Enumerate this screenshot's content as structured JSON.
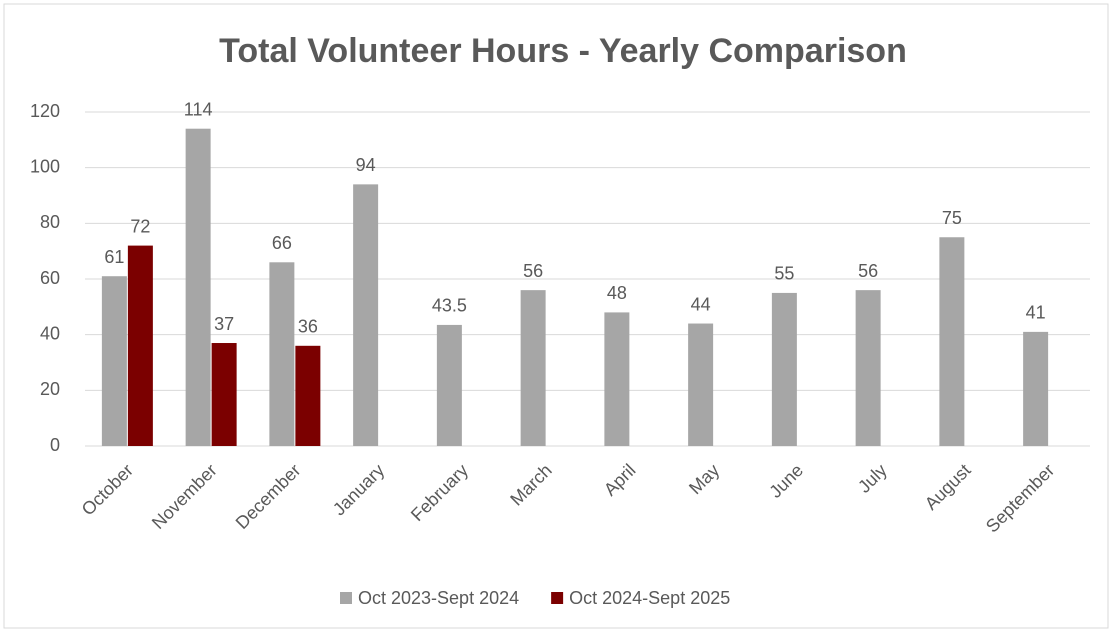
{
  "chart_data": {
    "type": "bar",
    "title": "Total Volunteer Hours - Yearly Comparison",
    "categories": [
      "October",
      "November",
      "December",
      "January",
      "February",
      "March",
      "April",
      "May",
      "June",
      "July",
      "August",
      "September"
    ],
    "series": [
      {
        "name": "Oct 2023-Sept 2024",
        "color": "#a6a6a6",
        "values": [
          61,
          114,
          66,
          94,
          43.5,
          56,
          48,
          44,
          55,
          56,
          75,
          41
        ]
      },
      {
        "name": "Oct 2024-Sept 2025",
        "color": "#7b0000",
        "values": [
          72,
          37,
          36,
          null,
          null,
          null,
          null,
          null,
          null,
          null,
          null,
          null
        ]
      }
    ],
    "ylim": [
      0,
      120
    ],
    "yticks": [
      0,
      20,
      40,
      60,
      80,
      100,
      120
    ],
    "grid": true,
    "legend": "bottom"
  }
}
